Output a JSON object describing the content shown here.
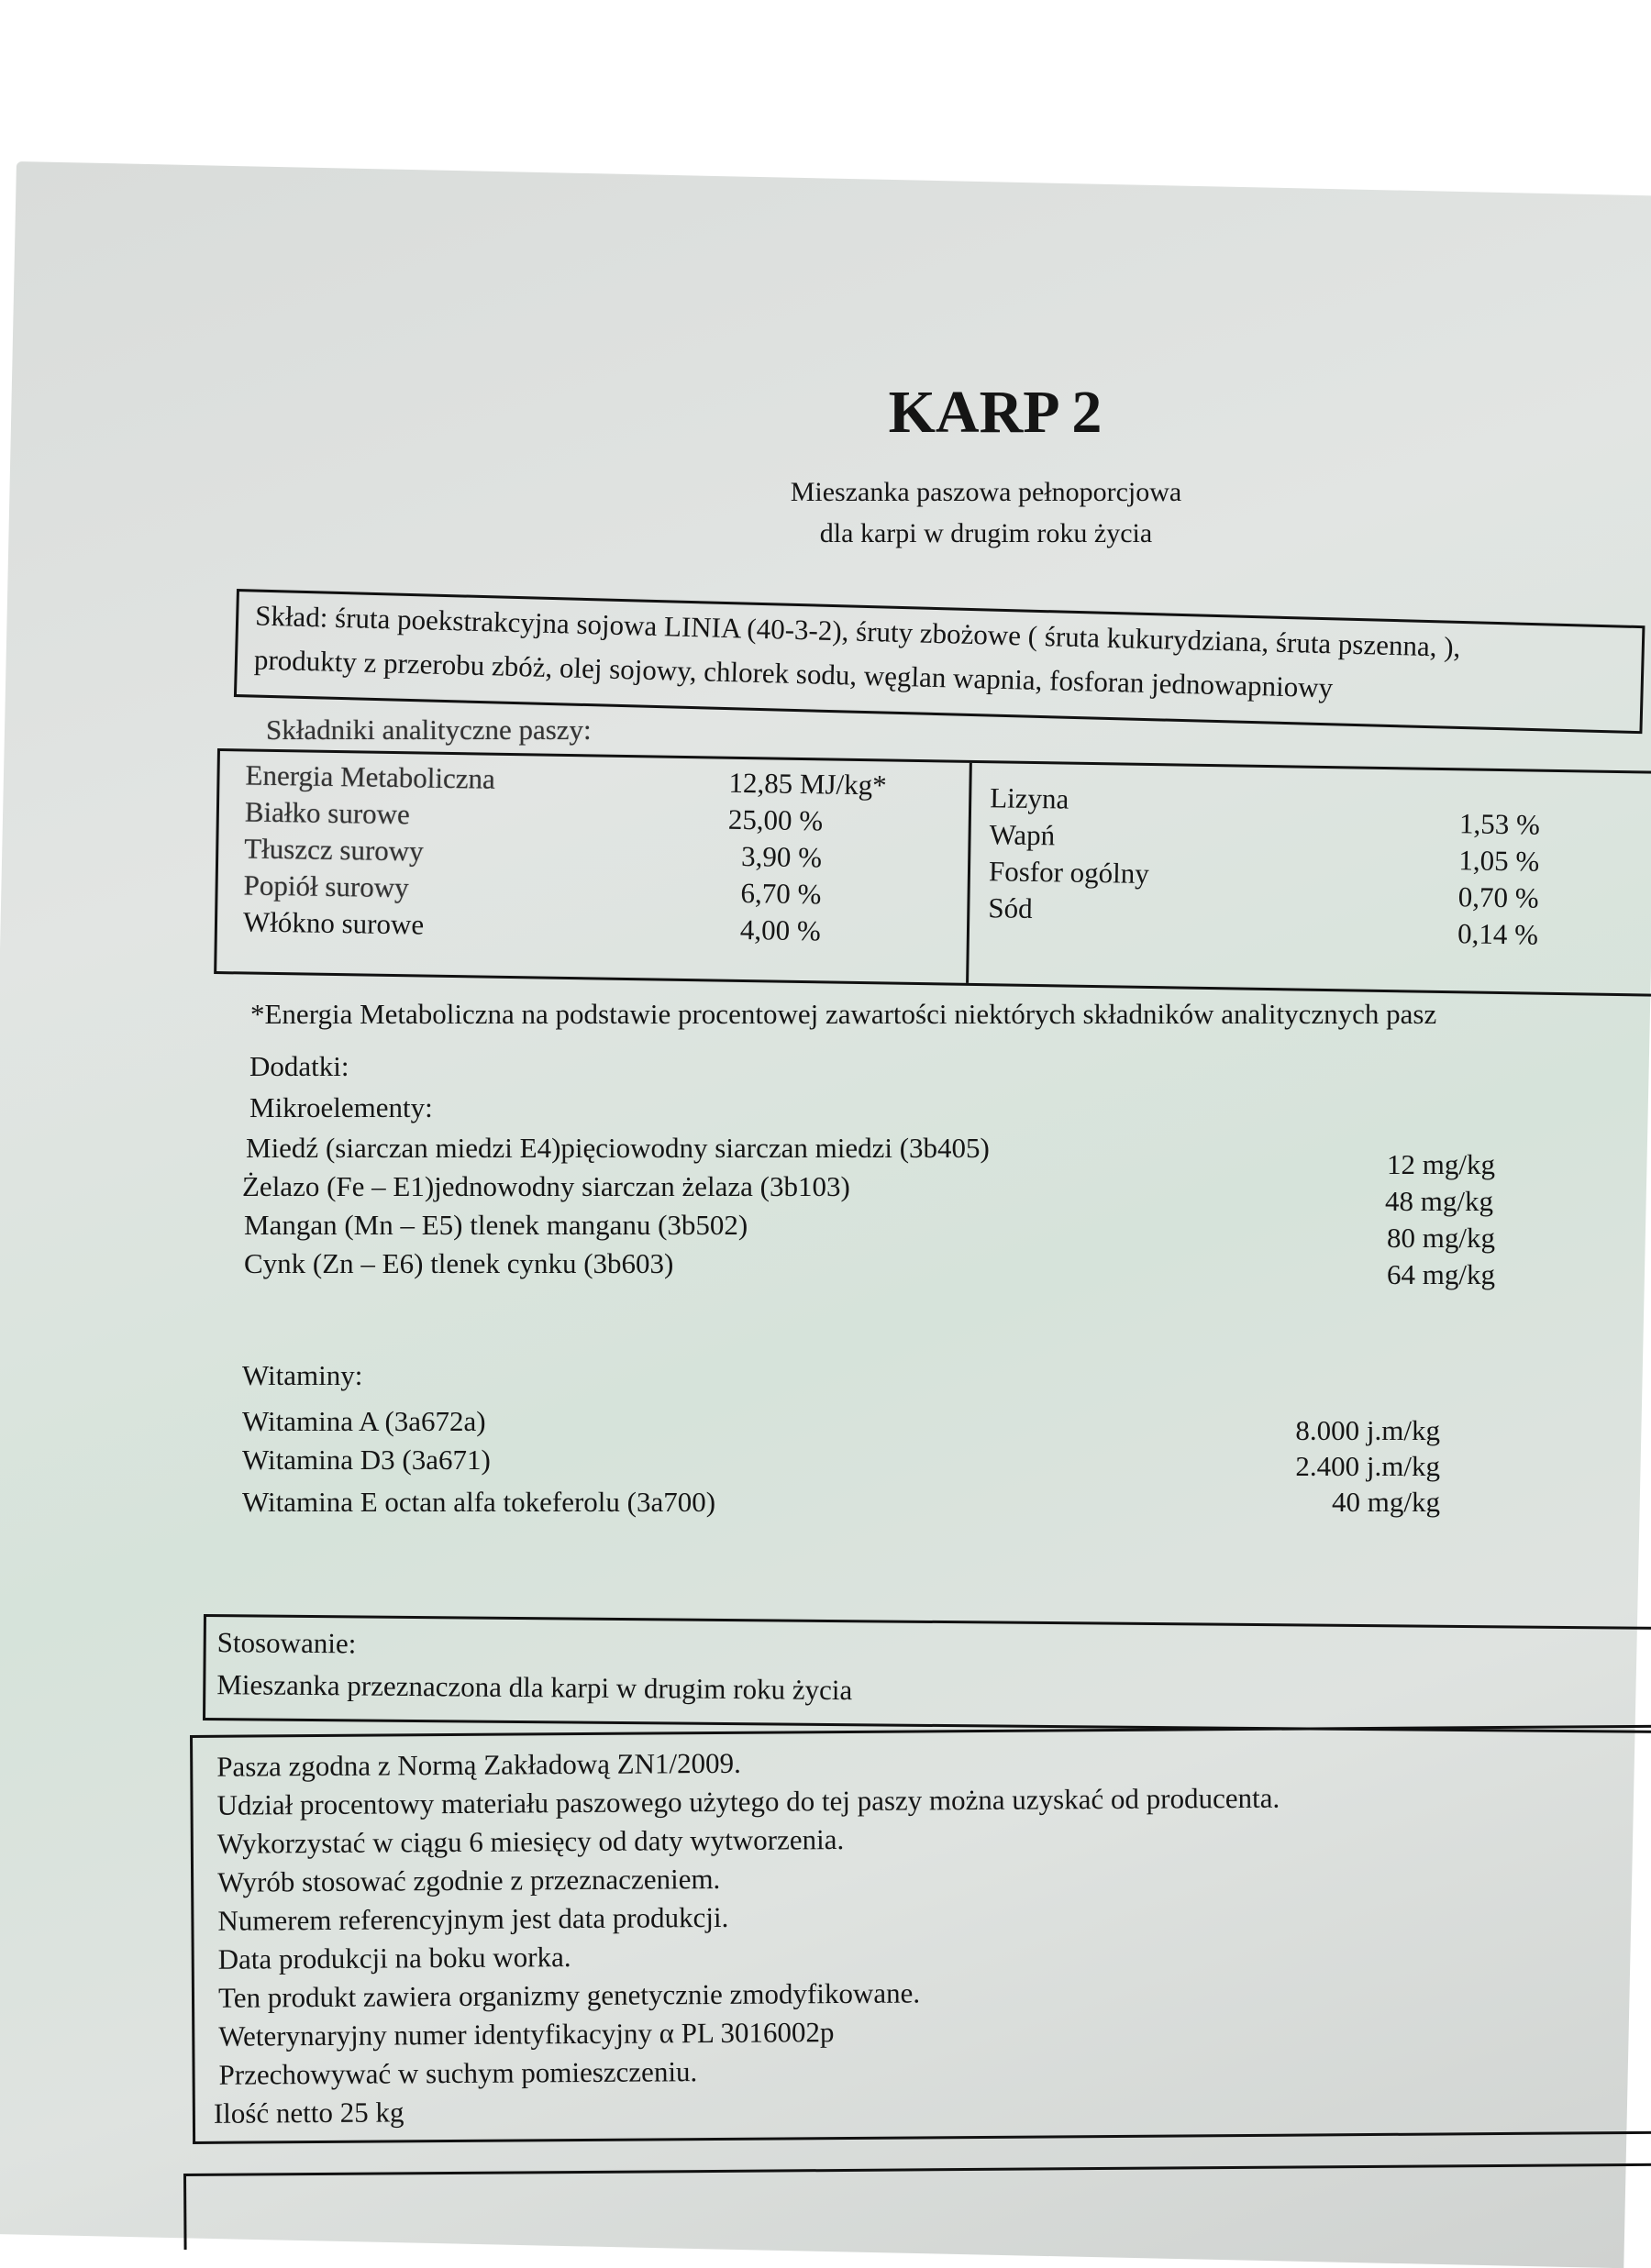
{
  "title": "KARP 2",
  "subtitle": [
    "Mieszanka paszowa pełnoporcjowa",
    "dla karpi w drugim roku życia"
  ],
  "composition": {
    "lines": [
      "Skład: śruta poekstrakcyjna sojowa LINIA (40-3-2), śruty zbożowe ( śruta kukurydziana, śruta pszenna, ),",
      "produkty z przerobu  zbóż, olej sojowy, chlorek sodu, węglan wapnia, fosforan jednowapniowy"
    ]
  },
  "analytical": {
    "heading": "Składniki analityczne paszy:",
    "left": [
      {
        "name": "Energia Metaboliczna",
        "value": "12,85 MJ/kg*"
      },
      {
        "name": "Białko surowe",
        "value": "25,00 %"
      },
      {
        "name": "Tłuszcz surowy",
        "value": "3,90 %"
      },
      {
        "name": "Popiół surowy",
        "value": "6,70 %"
      },
      {
        "name": "Włókno surowe",
        "value": "4,00 %"
      }
    ],
    "right_names": [
      "Lizyna",
      "Wapń",
      "Fosfor ogólny",
      "Sód"
    ],
    "right_values": [
      "1,53 %",
      "1,05 %",
      "0,70 %",
      "0,14 %"
    ],
    "footnote": "*Energia Metaboliczna na podstawie procentowej zawartości niektórych składników analitycznych pasz"
  },
  "additives": {
    "heading": "Dodatki:",
    "micro_heading": "Mikroelementy:",
    "micro": [
      {
        "name": "Miedź (siarczan miedzi E4)pięciowodny siarczan miedzi (3b405)",
        "value": "12 mg/kg"
      },
      {
        "name": "Żelazo (Fe – E1)jednowodny siarczan żelaza (3b103)",
        "value": "48 mg/kg"
      },
      {
        "name": "Mangan (Mn – E5) tlenek manganu (3b502)",
        "value": "80 mg/kg"
      },
      {
        "name": "Cynk (Zn – E6) tlenek cynku (3b603)",
        "value": "64 mg/kg"
      }
    ],
    "vit_heading": "Witaminy:",
    "vitamins": [
      {
        "name": "Witamina A (3a672a)",
        "value": "8.000 j.m/kg"
      },
      {
        "name": "Witamina D3 (3a671)",
        "value": "2.400 j.m/kg"
      },
      {
        "name": "Witamina E octan alfa tokeferolu (3a700)",
        "value": "40 mg/kg"
      }
    ]
  },
  "usage": {
    "heading": "Stosowanie:",
    "text": "Mieszanka przeznaczona dla karpi w drugim roku życia"
  },
  "notes": [
    "Pasza zgodna z Normą Zakładową ZN1/2009.",
    "Udział procentowy materiału paszowego użytego do tej paszy można uzyskać od producenta.",
    "Wykorzystać w ciągu 6 miesięcy od daty wytworzenia.",
    "Wyrób stosować zgodnie z przeznaczeniem.",
    "Numerem referencyjnym jest data produkcji.",
    "Data produkcji na boku worka.",
    "Ten produkt zawiera organizmy genetycznie zmodyfikowane.",
    "Weterynaryjny numer identyfikacyjny α PL 3016002p",
    "Przechowywać w suchym pomieszczeniu.",
    "Ilość netto 25 kg"
  ]
}
